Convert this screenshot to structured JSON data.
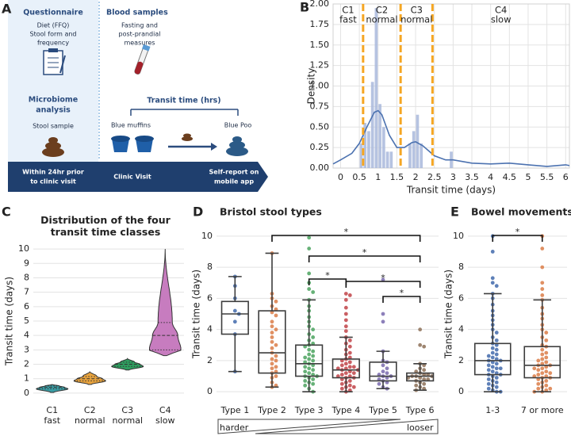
{
  "panel_labels": [
    "A",
    "B",
    "C",
    "D",
    "E"
  ],
  "diagram": {
    "questionnaire": {
      "title": "Questionnaire",
      "lines": [
        "Diet (FFQ)",
        "Stool form and",
        "frequency"
      ]
    },
    "blood_samples": {
      "title": "Blood samples",
      "lines": [
        "Fasting and",
        "post-prandial",
        "measures"
      ]
    },
    "microbiome": {
      "title": [
        "Microbiome",
        "analysis"
      ],
      "lines": [
        "Stool sample"
      ]
    },
    "transit_time": {
      "title": "Transit time (hrs)",
      "start": "Blue muffins",
      "end": "Blue Poo"
    },
    "timeline": [
      [
        "Within 24hr prior",
        "to clinic visit"
      ],
      [
        "Clinic Visit"
      ],
      [
        "Self-report on",
        "mobile app"
      ]
    ]
  },
  "chart_data": [
    {
      "type": "histogram",
      "xlabel": "Transit time (days)",
      "ylabel": "Density",
      "bins": [
        0.5,
        0.6,
        0.7,
        0.8,
        0.9,
        1.0,
        1.1,
        1.2,
        1.3,
        1.4,
        1.5,
        1.6,
        1.7,
        1.8,
        1.9,
        2.0,
        2.1,
        2.2,
        2.3,
        2.4,
        2.5,
        2.6,
        2.7,
        2.8,
        2.9,
        3.0
      ],
      "values": [
        0.3,
        0.55,
        0.45,
        1.05,
        1.95,
        0.78,
        0.5,
        0.2,
        0.2,
        0,
        0,
        0,
        0,
        0.3,
        0.45,
        0.65,
        0.3,
        0,
        0,
        0,
        0,
        0,
        0,
        0,
        0.2
      ],
      "color": "#a9b8dc",
      "density_curve": {
        "color": "#4c72b0",
        "x": [
          -0.2,
          0,
          0.3,
          0.5,
          0.7,
          0.9,
          1.0,
          1.1,
          1.3,
          1.5,
          1.7,
          1.9,
          2.0,
          2.2,
          2.5,
          2.8,
          3.0,
          3.5,
          4.0,
          4.5,
          5.0,
          5.5,
          6.0,
          6.1
        ],
        "y": [
          0.05,
          0.1,
          0.18,
          0.3,
          0.5,
          0.68,
          0.7,
          0.65,
          0.4,
          0.25,
          0.25,
          0.31,
          0.32,
          0.27,
          0.15,
          0.1,
          0.1,
          0.06,
          0.05,
          0.06,
          0.04,
          0.02,
          0.04,
          0.03
        ]
      },
      "class_boundaries": [
        0.6,
        1.6,
        2.45
      ],
      "boundary_color": "#f5a623",
      "class_labels": [
        [
          "C1",
          "fast"
        ],
        [
          "C2",
          "normal"
        ],
        [
          "C3",
          "normal"
        ],
        [
          "C4",
          "slow"
        ]
      ],
      "xlim": [
        -0.2,
        6.1
      ],
      "ylim": [
        0,
        2.0
      ],
      "xticks": [
        0,
        0.5,
        1,
        1.5,
        2,
        2.5,
        3,
        3.5,
        4,
        4.5,
        5,
        5.5,
        6
      ],
      "yticks": [
        {
          "value": 0,
          "label": "0.00"
        },
        {
          "value": 0.25,
          "label": "0.25"
        },
        {
          "value": 0.5,
          "label": "0.50"
        },
        {
          "value": 0.75,
          "label": "0.75"
        },
        {
          "value": 1.0,
          "label": "1.00"
        },
        {
          "value": 1.25,
          "label": "1.25"
        },
        {
          "value": 1.5,
          "label": "1.50"
        },
        {
          "value": 1.75,
          "label": "1.75"
        },
        {
          "value": 2.0,
          "label": "2.00"
        }
      ],
      "grid": true
    },
    {
      "type": "violin",
      "title": "Distribution of the four transit time classes",
      "ylabel": "Transit time (days)",
      "categories": [
        "C1",
        "C2",
        "C3",
        "C4"
      ],
      "sublabels": [
        "fast",
        "normal",
        "normal",
        "slow"
      ],
      "colors": [
        "#3a9ea5",
        "#e8a33d",
        "#2e9e5f",
        "#c77cbf"
      ],
      "stats": [
        {
          "min": 0.05,
          "q1": 0.3,
          "median": 0.4,
          "q3": 0.5,
          "max": 0.6
        },
        {
          "min": 0.6,
          "q1": 0.85,
          "median": 1.0,
          "q3": 1.15,
          "max": 1.5
        },
        {
          "min": 1.6,
          "q1": 1.85,
          "median": 2.0,
          "q3": 2.15,
          "max": 2.4
        },
        {
          "min": 2.6,
          "q1": 3.0,
          "median": 4.0,
          "q3": 4.9,
          "max": 10
        }
      ],
      "ylim": [
        -0.5,
        10.5
      ],
      "yticks": [
        0,
        1,
        2,
        3,
        4,
        5,
        6,
        7,
        8,
        9,
        10
      ],
      "grid": true
    },
    {
      "type": "box-swarm",
      "title": "Bristol stool types",
      "ylabel": "Transit time (days)",
      "categories": [
        "Type 1",
        "Type 2",
        "Type 3",
        "Type 4",
        "Type 5",
        "Type 6"
      ],
      "colors": [
        "#4c72b0",
        "#dd8452",
        "#55a868",
        "#c44e52",
        "#8172b3",
        "#937860"
      ],
      "boxes": [
        {
          "min": 1.3,
          "q1": 3.7,
          "median": 5.0,
          "q3": 5.8,
          "max": 7.4
        },
        {
          "min": 0.3,
          "q1": 1.2,
          "median": 2.5,
          "q3": 5.2,
          "max": 8.9
        },
        {
          "min": 0.0,
          "q1": 1.0,
          "median": 1.8,
          "q3": 3.0,
          "max": 5.9
        },
        {
          "min": 0.0,
          "q1": 0.9,
          "median": 1.4,
          "q3": 2.1,
          "max": 3.5
        },
        {
          "min": 0.2,
          "q1": 0.7,
          "median": 1.0,
          "q3": 1.9,
          "max": 2.6
        },
        {
          "min": 0.1,
          "q1": 0.7,
          "median": 1.0,
          "q3": 1.2,
          "max": 1.8
        }
      ],
      "points": [
        [
          7.4,
          6.8,
          6.0,
          5.2,
          5.0,
          4.5,
          3.7,
          1.3
        ],
        [
          8.9,
          6.3,
          6.0,
          5.8,
          5.5,
          5.3,
          5.1,
          4.9,
          4.5,
          4.2,
          4.0,
          3.8,
          3.5,
          3.2,
          3.0,
          2.8,
          2.5,
          2.3,
          2.1,
          2.0,
          1.8,
          1.6,
          1.5,
          1.3,
          1.2,
          1.0,
          0.9,
          0.6,
          0.4,
          0.3
        ],
        [
          9.9,
          9.2,
          7.6,
          7.0,
          6.6,
          6.4,
          5.9,
          5.5,
          5.2,
          4.8,
          4.5,
          4.2,
          4.0,
          3.7,
          3.5,
          3.3,
          3.1,
          3.0,
          2.9,
          2.7,
          2.6,
          2.4,
          2.3,
          2.2,
          2.1,
          2.0,
          1.9,
          1.8,
          1.7,
          1.6,
          1.5,
          1.4,
          1.3,
          1.2,
          1.1,
          1.0,
          1.0,
          0.9,
          0.8,
          0.7,
          0.6,
          0.5,
          0.4,
          0.2,
          0.0
        ],
        [
          6.3,
          6.2,
          5.9,
          5.4,
          5.0,
          4.6,
          4.2,
          3.9,
          3.5,
          3.3,
          3.1,
          2.9,
          2.7,
          2.5,
          2.4,
          2.2,
          2.1,
          2.0,
          1.9,
          1.8,
          1.7,
          1.6,
          1.6,
          1.5,
          1.5,
          1.4,
          1.4,
          1.3,
          1.2,
          1.2,
          1.1,
          1.0,
          1.0,
          0.9,
          0.9,
          0.8,
          0.7,
          0.6,
          0.5,
          0.4,
          0.3,
          0.3,
          0.2,
          0.1,
          0.0
        ],
        [
          7.2,
          5.0,
          4.5,
          2.6,
          2.0,
          1.9,
          1.7,
          1.5,
          1.3,
          1.2,
          1.1,
          1.0,
          1.0,
          0.9,
          0.8,
          0.7,
          0.6,
          0.5,
          0.3,
          0.2
        ],
        [
          4.0,
          3.0,
          2.9,
          1.8,
          1.7,
          1.5,
          1.4,
          1.3,
          1.2,
          1.1,
          1.1,
          1.0,
          1.0,
          1.0,
          0.9,
          0.9,
          0.8,
          0.8,
          0.7,
          0.6,
          0.5,
          0.4,
          0.3,
          0.2,
          0.1
        ]
      ],
      "comparisons": [
        {
          "from": "Type 2",
          "to": "Type 6",
          "label": "*"
        },
        {
          "from": "Type 3",
          "to": "Type 6",
          "label": "*"
        },
        {
          "from": "Type 3",
          "to": "Type 4",
          "label": "*"
        },
        {
          "from": "Type 4",
          "to": "Type 6",
          "label": "*"
        },
        {
          "from": "Type 5",
          "to": "Type 6",
          "label": "*"
        }
      ],
      "scale_labels": [
        "harder",
        "looser"
      ],
      "ylim": [
        -0.5,
        10.5
      ],
      "yticks": [
        0,
        2,
        4,
        6,
        8,
        10
      ],
      "grid": true
    },
    {
      "type": "box-swarm",
      "title": "Bowel movements",
      "ylabel": "Transit time (days)",
      "categories": [
        "1-3",
        "7 or more"
      ],
      "colors": [
        "#4c72b0",
        "#dd8452"
      ],
      "boxes": [
        {
          "min": 0.0,
          "q1": 1.1,
          "median": 2.0,
          "q3": 3.1,
          "max": 6.3
        },
        {
          "min": 0.0,
          "q1": 0.9,
          "median": 1.7,
          "q3": 2.9,
          "max": 5.9
        }
      ],
      "points": [
        [
          10.0,
          9.0,
          7.3,
          7.0,
          6.8,
          6.3,
          6.0,
          5.6,
          5.2,
          4.9,
          4.6,
          4.3,
          4.0,
          3.8,
          3.5,
          3.3,
          3.1,
          3.0,
          2.8,
          2.7,
          2.5,
          2.4,
          2.3,
          2.2,
          2.1,
          2.0,
          2.0,
          1.9,
          1.8,
          1.7,
          1.6,
          1.5,
          1.5,
          1.4,
          1.3,
          1.2,
          1.1,
          1.1,
          1.0,
          0.9,
          0.8,
          0.7,
          0.6,
          0.5,
          0.4,
          0.3,
          0.2,
          0.1,
          0.0,
          0.0
        ],
        [
          10.0,
          9.2,
          8.0,
          7.0,
          6.6,
          6.2,
          5.9,
          5.4,
          5.0,
          4.7,
          4.3,
          4.0,
          3.8,
          3.5,
          3.3,
          3.0,
          2.9,
          2.7,
          2.5,
          2.4,
          2.2,
          2.1,
          2.0,
          1.9,
          1.8,
          1.7,
          1.7,
          1.6,
          1.5,
          1.5,
          1.4,
          1.3,
          1.2,
          1.2,
          1.1,
          1.0,
          1.0,
          0.9,
          0.9,
          0.8,
          0.7,
          0.6,
          0.5,
          0.4,
          0.3,
          0.2,
          0.2,
          0.1,
          0.0,
          0.0
        ]
      ],
      "comparisons": [
        {
          "from": "1-3",
          "to": "7 or more",
          "label": "*"
        }
      ],
      "ylim": [
        -0.5,
        10.5
      ],
      "yticks": [
        0,
        2,
        4,
        6,
        8,
        10
      ],
      "grid": true
    }
  ]
}
